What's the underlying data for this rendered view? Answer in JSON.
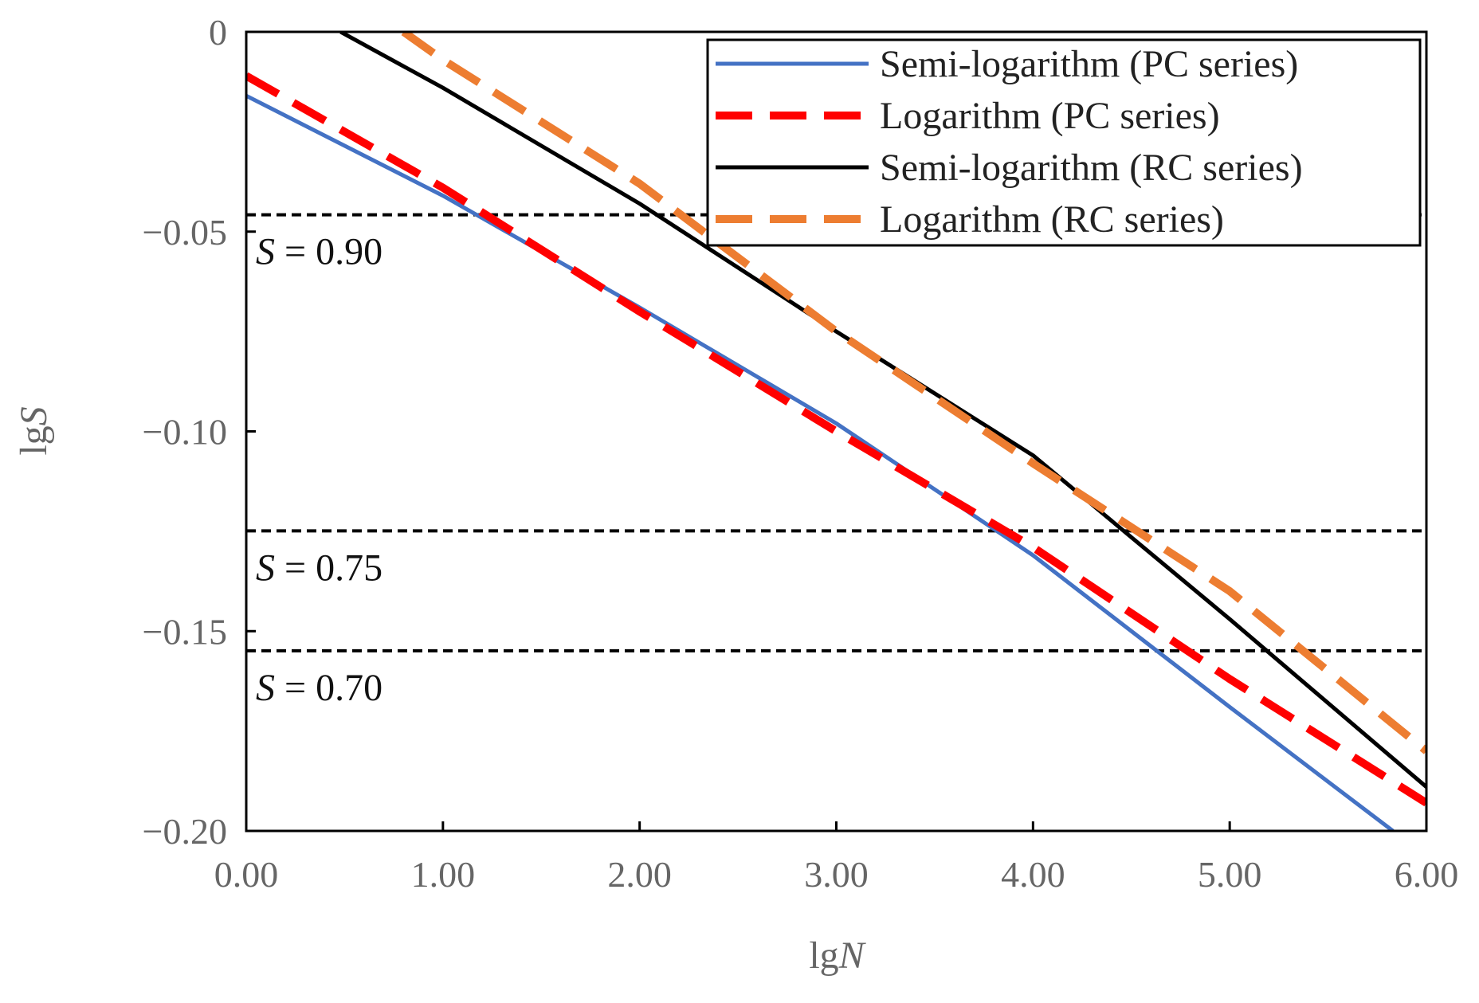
{
  "chart_data": {
    "type": "line",
    "title": "",
    "xlabel_prefix": "lg",
    "xlabel_var": "N",
    "ylabel_prefix": "lg",
    "ylabel_var": "S",
    "xlim": [
      0,
      6
    ],
    "ylim": [
      -0.2,
      0
    ],
    "x_ticks": [
      0,
      1,
      2,
      3,
      4,
      5,
      6
    ],
    "x_tick_labels": [
      "0.00",
      "1.00",
      "2.00",
      "3.00",
      "4.00",
      "5.00",
      "6.00"
    ],
    "y_ticks": [
      0,
      -0.05,
      -0.1,
      -0.15,
      -0.2
    ],
    "y_tick_labels": [
      "0",
      "−0.05",
      "−0.10",
      "−0.15",
      "−0.20"
    ],
    "legend_position": "top-right",
    "series": [
      {
        "name": "Semi-logarithm (PC series)",
        "color": "#4472c4",
        "dash": "solid",
        "x": [
          0,
          1,
          2,
          3,
          4,
          5,
          5.83
        ],
        "y": [
          -0.016,
          -0.041,
          -0.069,
          -0.098,
          -0.131,
          -0.169,
          -0.2
        ]
      },
      {
        "name": "Logarithm (PC series)",
        "color": "#ff0000",
        "dash": "dashed",
        "x": [
          0,
          1,
          2,
          3,
          4,
          5,
          6
        ],
        "y": [
          -0.011,
          -0.039,
          -0.07,
          -0.1,
          -0.129,
          -0.162,
          -0.193
        ]
      },
      {
        "name": "Semi-logarithm (RC series)",
        "color": "#000000",
        "dash": "solid",
        "x": [
          0.48,
          1,
          2,
          3,
          4,
          5,
          6
        ],
        "y": [
          0,
          -0.014,
          -0.043,
          -0.075,
          -0.106,
          -0.147,
          -0.189
        ]
      },
      {
        "name": "Logarithm (RC series)",
        "color": "#ed7d31",
        "dash": "dashed",
        "x": [
          0.8,
          1,
          2,
          3,
          4,
          5,
          6
        ],
        "y": [
          0,
          -0.007,
          -0.038,
          -0.075,
          -0.108,
          -0.14,
          -0.18
        ]
      }
    ],
    "reference_lines": [
      {
        "y": -0.0458,
        "var": "S",
        "label": "= 0.90"
      },
      {
        "y": -0.1249,
        "var": "S",
        "label": "= 0.75"
      },
      {
        "y": -0.1549,
        "var": "S",
        "label": "= 0.70"
      }
    ]
  }
}
